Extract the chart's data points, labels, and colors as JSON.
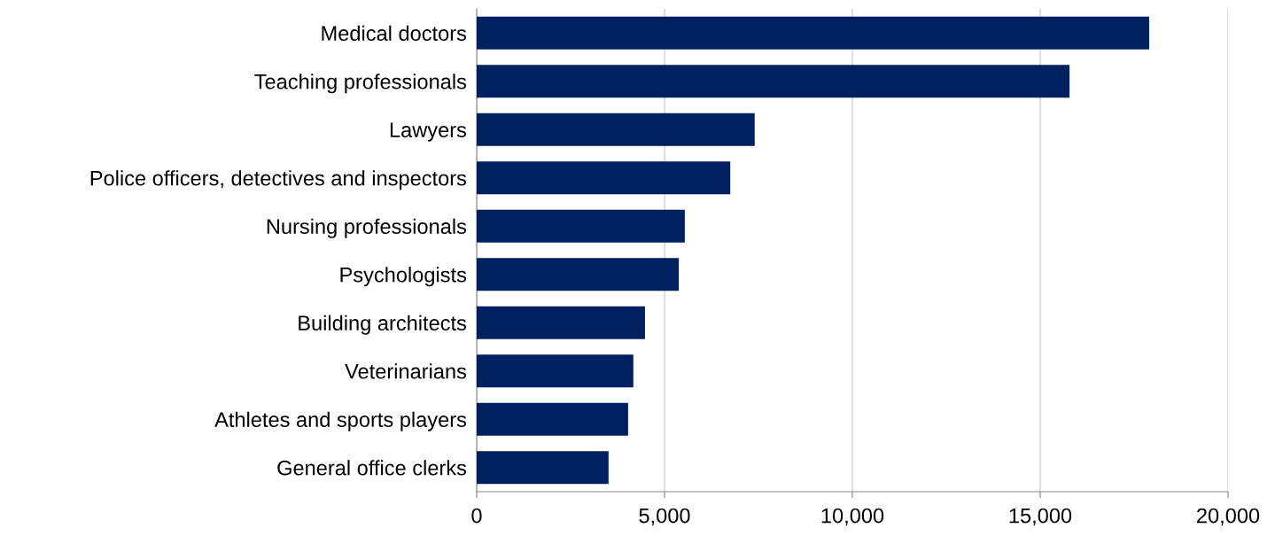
{
  "chart_data": {
    "type": "bar",
    "orientation": "horizontal",
    "categories": [
      "Medical doctors",
      "Teaching professionals",
      "Lawyers",
      "Police officers, detectives and inspectors",
      "Nursing professionals",
      "Psychologists",
      "Building architects",
      "Veterinarians",
      "Athletes and sports players",
      "General office clerks"
    ],
    "values": [
      17900,
      15780,
      7400,
      6750,
      5540,
      5380,
      4480,
      4170,
      4030,
      3510
    ],
    "color": "#002060",
    "xlim": [
      0,
      20000
    ],
    "xticks": [
      {
        "value": 0,
        "label": "0"
      },
      {
        "value": 5000,
        "label": "5,000"
      },
      {
        "value": 10000,
        "label": "10,000"
      },
      {
        "value": 15000,
        "label": "15,000"
      },
      {
        "value": 20000,
        "label": "20,000"
      }
    ],
    "grid": "x"
  }
}
